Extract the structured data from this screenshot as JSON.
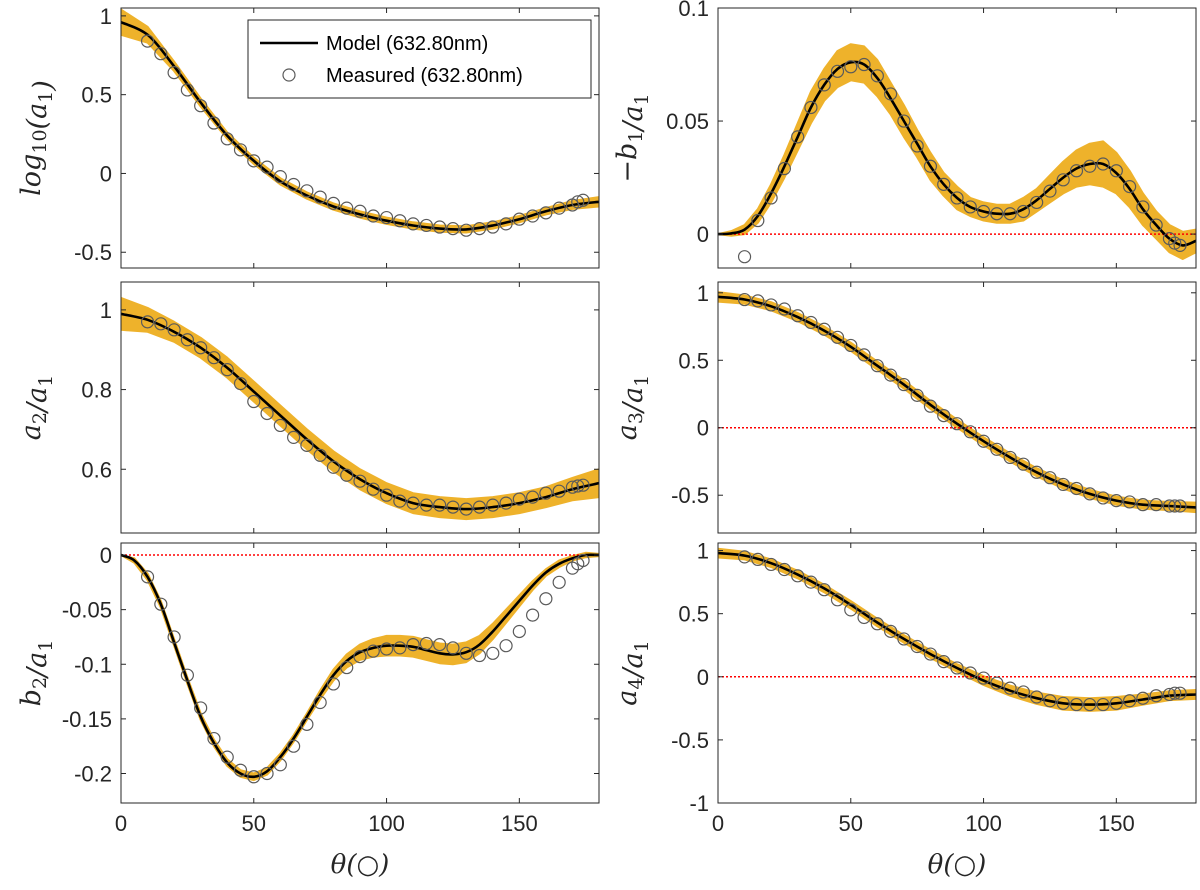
{
  "colors": {
    "model": "#000000",
    "band": "#eeb22b",
    "measured": "#5a5a5a",
    "zero_line": "#ff0000",
    "axis": "#262626"
  },
  "legend": {
    "model_label": "Model (632.80nm)",
    "measured_label": "Measured (632.80nm)",
    "placement": "top-right of first panel"
  },
  "chart_data": [
    {
      "type": "line",
      "name": "log10-a1",
      "ylabel": "log10(a1)",
      "xlabel": "",
      "xlim": [
        0,
        180
      ],
      "ylim": [
        -0.6,
        1.05
      ],
      "xticks": [
        0,
        50,
        100,
        150
      ],
      "xticklabels": [
        "",
        "",
        "",
        ""
      ],
      "yticks": [
        -0.5,
        0,
        0.5,
        1
      ],
      "yticklabels": [
        "-0.5",
        "0",
        "0.5",
        "1"
      ],
      "zero_line": false,
      "legend": true,
      "model": {
        "x": [
          0,
          10,
          20,
          30,
          40,
          50,
          60,
          70,
          80,
          90,
          100,
          110,
          120,
          130,
          140,
          150,
          160,
          170,
          180
        ],
        "y": [
          0.96,
          0.88,
          0.68,
          0.45,
          0.24,
          0.08,
          -0.05,
          -0.14,
          -0.21,
          -0.26,
          -0.3,
          -0.33,
          -0.35,
          -0.355,
          -0.33,
          -0.29,
          -0.24,
          -0.2,
          -0.18
        ],
        "band": [
          0.08,
          0.05,
          0.03,
          0.025,
          0.02,
          0.02,
          0.02,
          0.02,
          0.02,
          0.02,
          0.02,
          0.02,
          0.02,
          0.02,
          0.02,
          0.02,
          0.02,
          0.025,
          0.03
        ]
      },
      "measured": {
        "x": [
          10,
          15,
          20,
          25,
          30,
          35,
          40,
          45,
          50,
          55,
          60,
          65,
          70,
          75,
          80,
          85,
          90,
          95,
          100,
          105,
          110,
          115,
          120,
          125,
          130,
          135,
          140,
          145,
          150,
          155,
          160,
          165,
          170,
          172,
          174
        ],
        "y": [
          0.84,
          0.76,
          0.64,
          0.53,
          0.43,
          0.32,
          0.22,
          0.15,
          0.08,
          0.04,
          -0.02,
          -0.07,
          -0.11,
          -0.15,
          -0.19,
          -0.22,
          -0.24,
          -0.27,
          -0.28,
          -0.3,
          -0.32,
          -0.33,
          -0.34,
          -0.35,
          -0.36,
          -0.35,
          -0.34,
          -0.32,
          -0.29,
          -0.27,
          -0.25,
          -0.22,
          -0.2,
          -0.18,
          -0.17
        ]
      }
    },
    {
      "type": "line",
      "name": "neg-b1-over-a1",
      "ylabel": "−b1/a1",
      "xlabel": "",
      "xlim": [
        0,
        180
      ],
      "ylim": [
        -0.015,
        0.1
      ],
      "xticks": [
        0,
        50,
        100,
        150
      ],
      "xticklabels": [
        "",
        "",
        "",
        ""
      ],
      "yticks": [
        0,
        0.05,
        0.1
      ],
      "yticklabels": [
        "0",
        "0.05",
        "0.1"
      ],
      "zero_line": true,
      "legend": false,
      "model": {
        "x": [
          0,
          5,
          10,
          15,
          20,
          25,
          30,
          35,
          40,
          45,
          50,
          55,
          60,
          65,
          70,
          75,
          80,
          85,
          90,
          95,
          100,
          105,
          110,
          115,
          120,
          125,
          130,
          135,
          140,
          145,
          150,
          155,
          160,
          165,
          170,
          175,
          180
        ],
        "y": [
          0,
          0.0003,
          0.002,
          0.008,
          0.018,
          0.03,
          0.043,
          0.056,
          0.066,
          0.073,
          0.076,
          0.075,
          0.069,
          0.06,
          0.05,
          0.04,
          0.03,
          0.022,
          0.016,
          0.012,
          0.01,
          0.009,
          0.009,
          0.011,
          0.015,
          0.02,
          0.025,
          0.029,
          0.031,
          0.031,
          0.027,
          0.02,
          0.011,
          0.004,
          -0.002,
          -0.005,
          -0.003
        ],
        "band": [
          0,
          0.001,
          0.002,
          0.003,
          0.004,
          0.005,
          0.006,
          0.007,
          0.007,
          0.008,
          0.008,
          0.008,
          0.008,
          0.007,
          0.007,
          0.006,
          0.006,
          0.005,
          0.005,
          0.004,
          0.004,
          0.004,
          0.004,
          0.005,
          0.005,
          0.006,
          0.007,
          0.008,
          0.009,
          0.01,
          0.009,
          0.008,
          0.007,
          0.006,
          0.006,
          0.006,
          0.005
        ]
      },
      "measured": {
        "x": [
          10,
          15,
          20,
          25,
          30,
          35,
          40,
          45,
          50,
          55,
          60,
          65,
          70,
          75,
          80,
          85,
          90,
          95,
          100,
          105,
          110,
          115,
          120,
          125,
          130,
          135,
          140,
          145,
          150,
          155,
          160,
          165,
          170,
          172,
          174
        ],
        "y": [
          -0.01,
          0.006,
          0.016,
          0.029,
          0.043,
          0.056,
          0.066,
          0.072,
          0.074,
          0.075,
          0.07,
          0.062,
          0.05,
          0.039,
          0.03,
          0.022,
          0.016,
          0.012,
          0.01,
          0.009,
          0.009,
          0.01,
          0.014,
          0.019,
          0.024,
          0.028,
          0.03,
          0.031,
          0.028,
          0.021,
          0.012,
          0.004,
          -0.002,
          -0.004,
          -0.005
        ]
      }
    },
    {
      "type": "line",
      "name": "a2-over-a1",
      "ylabel": "a2/a1",
      "xlabel": "",
      "xlim": [
        0,
        180
      ],
      "ylim": [
        0.44,
        1.07
      ],
      "xticks": [
        0,
        50,
        100,
        150
      ],
      "xticklabels": [
        "",
        "",
        "",
        ""
      ],
      "yticks": [
        0.6,
        0.8,
        1
      ],
      "yticklabels": [
        "0.6",
        "0.8",
        "1"
      ],
      "zero_line": false,
      "legend": false,
      "model": {
        "x": [
          0,
          10,
          20,
          30,
          40,
          50,
          60,
          70,
          80,
          90,
          100,
          110,
          120,
          130,
          140,
          150,
          160,
          170,
          180
        ],
        "y": [
          0.99,
          0.975,
          0.945,
          0.905,
          0.855,
          0.795,
          0.735,
          0.675,
          0.62,
          0.575,
          0.54,
          0.515,
          0.505,
          0.5,
          0.505,
          0.515,
          0.53,
          0.55,
          0.565
        ],
        "band": [
          0.04,
          0.03,
          0.025,
          0.025,
          0.025,
          0.025,
          0.025,
          0.025,
          0.025,
          0.025,
          0.025,
          0.025,
          0.025,
          0.025,
          0.025,
          0.025,
          0.025,
          0.028,
          0.035
        ]
      },
      "measured": {
        "x": [
          10,
          15,
          20,
          25,
          30,
          35,
          40,
          45,
          50,
          55,
          60,
          65,
          70,
          75,
          80,
          85,
          90,
          95,
          100,
          105,
          110,
          115,
          120,
          125,
          130,
          135,
          140,
          145,
          150,
          155,
          160,
          165,
          170,
          172,
          174
        ],
        "y": [
          0.97,
          0.965,
          0.95,
          0.925,
          0.905,
          0.88,
          0.85,
          0.815,
          0.77,
          0.74,
          0.71,
          0.68,
          0.66,
          0.635,
          0.605,
          0.585,
          0.57,
          0.55,
          0.535,
          0.52,
          0.515,
          0.51,
          0.51,
          0.505,
          0.5,
          0.505,
          0.51,
          0.515,
          0.525,
          0.53,
          0.54,
          0.545,
          0.555,
          0.558,
          0.56
        ]
      }
    },
    {
      "type": "line",
      "name": "a3-over-a1",
      "ylabel": "a3/a1",
      "xlabel": "",
      "xlim": [
        0,
        180
      ],
      "ylim": [
        -0.78,
        1.08
      ],
      "xticks": [
        0,
        50,
        100,
        150
      ],
      "xticklabels": [
        "",
        "",
        "",
        ""
      ],
      "yticks": [
        -0.5,
        0,
        0.5,
        1
      ],
      "yticklabels": [
        "-0.5",
        "0",
        "0.5",
        "1"
      ],
      "zero_line": true,
      "legend": false,
      "model": {
        "x": [
          0,
          10,
          20,
          30,
          40,
          50,
          60,
          70,
          80,
          90,
          100,
          110,
          120,
          130,
          140,
          150,
          160,
          170,
          180
        ],
        "y": [
          0.97,
          0.95,
          0.9,
          0.82,
          0.72,
          0.6,
          0.46,
          0.32,
          0.17,
          0.03,
          -0.1,
          -0.22,
          -0.33,
          -0.42,
          -0.49,
          -0.54,
          -0.57,
          -0.58,
          -0.59
        ],
        "band": [
          0.035,
          0.03,
          0.03,
          0.03,
          0.03,
          0.03,
          0.03,
          0.03,
          0.03,
          0.03,
          0.03,
          0.03,
          0.03,
          0.03,
          0.03,
          0.03,
          0.03,
          0.03,
          0.035
        ]
      },
      "measured": {
        "x": [
          10,
          15,
          20,
          25,
          30,
          35,
          40,
          45,
          50,
          55,
          60,
          65,
          70,
          75,
          80,
          85,
          90,
          95,
          100,
          105,
          110,
          115,
          120,
          125,
          130,
          135,
          140,
          145,
          150,
          155,
          160,
          165,
          170,
          172,
          174
        ],
        "y": [
          0.95,
          0.94,
          0.91,
          0.88,
          0.83,
          0.78,
          0.73,
          0.67,
          0.61,
          0.54,
          0.46,
          0.39,
          0.32,
          0.24,
          0.16,
          0.09,
          0.03,
          -0.03,
          -0.1,
          -0.16,
          -0.22,
          -0.27,
          -0.33,
          -0.37,
          -0.42,
          -0.45,
          -0.49,
          -0.52,
          -0.54,
          -0.55,
          -0.57,
          -0.57,
          -0.58,
          -0.58,
          -0.58
        ]
      }
    },
    {
      "type": "line",
      "name": "b2-over-a1",
      "ylabel": "b2/a1",
      "xlabel": "θ(○)",
      "xlim": [
        0,
        180
      ],
      "ylim": [
        -0.227,
        0.011
      ],
      "xticks": [
        0,
        50,
        100,
        150
      ],
      "xticklabels": [
        "0",
        "50",
        "100",
        "150"
      ],
      "yticks": [
        -0.2,
        -0.15,
        -0.1,
        -0.05,
        0
      ],
      "yticklabels": [
        "-0.2",
        "-0.15",
        "-0.1",
        "-0.05",
        "0"
      ],
      "zero_line": true,
      "legend": false,
      "model": {
        "x": [
          0,
          5,
          10,
          15,
          20,
          25,
          30,
          35,
          40,
          45,
          50,
          55,
          60,
          65,
          70,
          75,
          80,
          85,
          90,
          95,
          100,
          105,
          110,
          115,
          120,
          125,
          130,
          135,
          140,
          145,
          150,
          155,
          160,
          165,
          170,
          175,
          180
        ],
        "y": [
          0,
          -0.005,
          -0.02,
          -0.045,
          -0.08,
          -0.115,
          -0.148,
          -0.172,
          -0.19,
          -0.2,
          -0.203,
          -0.198,
          -0.185,
          -0.168,
          -0.148,
          -0.128,
          -0.11,
          -0.097,
          -0.089,
          -0.085,
          -0.083,
          -0.083,
          -0.084,
          -0.087,
          -0.09,
          -0.091,
          -0.089,
          -0.082,
          -0.07,
          -0.056,
          -0.042,
          -0.028,
          -0.016,
          -0.008,
          -0.003,
          0,
          0
        ],
        "band": [
          0,
          0.002,
          0.003,
          0.003,
          0.003,
          0.003,
          0.003,
          0.003,
          0.003,
          0.003,
          0.003,
          0.003,
          0.003,
          0.003,
          0.003,
          0.004,
          0.005,
          0.006,
          0.007,
          0.008,
          0.009,
          0.009,
          0.009,
          0.009,
          0.009,
          0.009,
          0.009,
          0.008,
          0.007,
          0.006,
          0.005,
          0.004,
          0.003,
          0.003,
          0.002,
          0.002,
          0.001
        ]
      },
      "measured": {
        "x": [
          10,
          15,
          20,
          25,
          30,
          35,
          40,
          45,
          50,
          55,
          60,
          65,
          70,
          75,
          80,
          85,
          90,
          95,
          100,
          105,
          110,
          115,
          120,
          125,
          130,
          135,
          140,
          145,
          150,
          155,
          160,
          165,
          170,
          172,
          174
        ],
        "y": [
          -0.02,
          -0.045,
          -0.075,
          -0.11,
          -0.14,
          -0.168,
          -0.185,
          -0.197,
          -0.203,
          -0.2,
          -0.192,
          -0.175,
          -0.155,
          -0.135,
          -0.118,
          -0.103,
          -0.093,
          -0.088,
          -0.086,
          -0.085,
          -0.082,
          -0.081,
          -0.082,
          -0.085,
          -0.09,
          -0.092,
          -0.09,
          -0.083,
          -0.07,
          -0.055,
          -0.04,
          -0.025,
          -0.012,
          -0.008,
          -0.005
        ]
      }
    },
    {
      "type": "line",
      "name": "a4-over-a1",
      "ylabel": "a4/a1",
      "xlabel": "θ(○)",
      "xlim": [
        0,
        180
      ],
      "ylim": [
        -1.0,
        1.06
      ],
      "xticks": [
        0,
        50,
        100,
        150
      ],
      "xticklabels": [
        "0",
        "50",
        "100",
        "150"
      ],
      "yticks": [
        -1,
        -0.5,
        0,
        0.5,
        1
      ],
      "yticklabels": [
        "-1",
        "-0.5",
        "0",
        "0.5",
        "1"
      ],
      "zero_line": true,
      "legend": false,
      "model": {
        "x": [
          0,
          10,
          20,
          30,
          40,
          50,
          60,
          70,
          80,
          90,
          100,
          110,
          120,
          130,
          140,
          150,
          160,
          170,
          180
        ],
        "y": [
          0.98,
          0.96,
          0.9,
          0.81,
          0.7,
          0.57,
          0.43,
          0.3,
          0.18,
          0.07,
          -0.03,
          -0.11,
          -0.17,
          -0.21,
          -0.22,
          -0.21,
          -0.18,
          -0.15,
          -0.14
        ],
        "band": [
          0.035,
          0.03,
          0.03,
          0.03,
          0.03,
          0.03,
          0.03,
          0.03,
          0.03,
          0.03,
          0.035,
          0.04,
          0.045,
          0.05,
          0.05,
          0.05,
          0.04,
          0.035,
          0.035
        ]
      },
      "measured": {
        "x": [
          10,
          15,
          20,
          25,
          30,
          35,
          40,
          45,
          50,
          55,
          60,
          65,
          70,
          75,
          80,
          85,
          90,
          95,
          100,
          105,
          110,
          115,
          120,
          125,
          130,
          135,
          140,
          145,
          150,
          155,
          160,
          165,
          170,
          172,
          174
        ],
        "y": [
          0.95,
          0.93,
          0.89,
          0.85,
          0.8,
          0.75,
          0.69,
          0.61,
          0.53,
          0.47,
          0.42,
          0.36,
          0.3,
          0.24,
          0.18,
          0.12,
          0.07,
          0.03,
          -0.01,
          -0.05,
          -0.09,
          -0.12,
          -0.16,
          -0.19,
          -0.21,
          -0.22,
          -0.22,
          -0.22,
          -0.21,
          -0.19,
          -0.17,
          -0.15,
          -0.14,
          -0.13,
          -0.13
        ]
      }
    }
  ]
}
